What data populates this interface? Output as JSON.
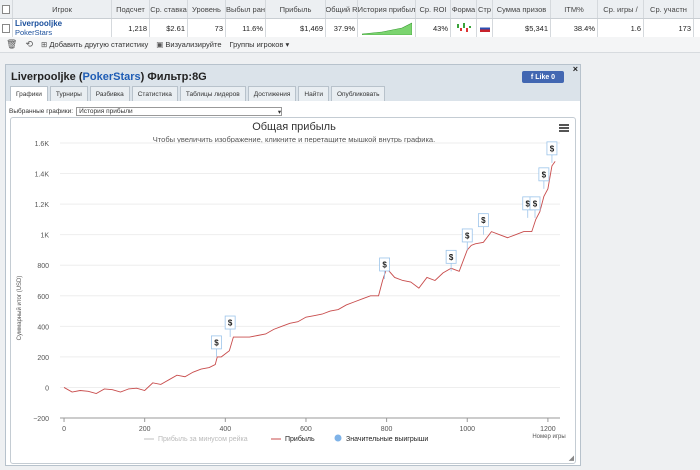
{
  "grid": {
    "headers": [
      "Игрок",
      "Подсчет",
      "Ср. ставка",
      "Уровень",
      "Выбыл ран",
      "Прибыль",
      "Общий R",
      "История прибыл",
      "Ср. ROI",
      "Форма",
      "Стр",
      "Сумма призов",
      "ITM%",
      "Ср. игры /",
      "Ср. участн"
    ],
    "row": {
      "player": "Liverpooljke",
      "site": "PokerStars",
      "count": "1,218",
      "avg_stake": "$2.61",
      "level": "73",
      "early_out": "11.6%",
      "profit": "$1,469",
      "total_r": "37.9%",
      "avg_roi": "43%",
      "prize_sum": "$5,341",
      "itm": "38.4%",
      "avg_games": "1.6",
      "avg_entrants": "173"
    }
  },
  "toolbar": {
    "add_stat": "Добавить другую статистику",
    "visualize": "Визуализируйте",
    "groups": "Группы игроков"
  },
  "panel": {
    "player": "Liverpooljke",
    "site": "PokerStars",
    "filter": "Фильтр:8G",
    "like": "Like 0",
    "tabs": [
      "Графики",
      "Турниры",
      "Разбивка",
      "Статистика",
      "Таблицы лидеров",
      "Достижения",
      "Найти",
      "Опубликовать"
    ],
    "sel_label": "Выбранные графики:",
    "sel_value": "История прибыли"
  },
  "chart_data": {
    "type": "line",
    "title": "Общая прибыль",
    "subtitle": "Чтобы увеличить изображение, кликните и перетащите мышкой внутрь графика.",
    "ylabel": "Суммарный итог (USD)",
    "xlabel": "Номер игры",
    "xlim": [
      -10,
      1230
    ],
    "ylim": [
      -200,
      1600
    ],
    "xticks": [
      0,
      200,
      400,
      600,
      800,
      1000,
      1200
    ],
    "xtick_labels": [
      "0",
      "200",
      "400",
      "600",
      "800",
      "1000",
      "1200"
    ],
    "yticks": [
      -200,
      0,
      200,
      400,
      600,
      800,
      1000,
      1200,
      1400,
      1600
    ],
    "ytick_labels": [
      "−200",
      "0",
      "200",
      "400",
      "600",
      "800",
      "1K",
      "1.2K",
      "1.4K",
      "1.6K"
    ],
    "legend": [
      "Прибыль за минусом рейка",
      "Прибыль",
      "Значительные выигрыши"
    ],
    "colors": {
      "profit": "#c84c4c",
      "rake": "#bfbfbf",
      "bigwin": "#7fb3e8"
    },
    "series": [
      {
        "name": "Прибыль",
        "x": [
          0,
          20,
          40,
          60,
          80,
          100,
          120,
          140,
          160,
          180,
          200,
          220,
          240,
          260,
          280,
          300,
          320,
          340,
          360,
          375,
          380,
          390,
          410,
          420,
          440,
          460,
          480,
          500,
          520,
          540,
          560,
          580,
          600,
          620,
          640,
          660,
          680,
          700,
          720,
          740,
          760,
          780,
          790,
          800,
          820,
          840,
          860,
          880,
          900,
          920,
          940,
          960,
          980,
          1000,
          1010,
          1020,
          1040,
          1060,
          1080,
          1100,
          1120,
          1140,
          1160,
          1170,
          1180,
          1190,
          1200,
          1210,
          1218
        ],
        "y": [
          0,
          -30,
          -20,
          -25,
          -40,
          -10,
          -15,
          -30,
          -10,
          -5,
          -20,
          30,
          20,
          50,
          80,
          70,
          100,
          120,
          130,
          150,
          200,
          200,
          240,
          330,
          330,
          330,
          340,
          350,
          380,
          400,
          420,
          430,
          460,
          470,
          480,
          500,
          510,
          540,
          560,
          580,
          600,
          600,
          700,
          780,
          720,
          700,
          690,
          650,
          720,
          700,
          750,
          780,
          760,
          900,
          930,
          940,
          950,
          1020,
          1000,
          980,
          1000,
          1020,
          1020,
          1100,
          1150,
          1250,
          1300,
          1450,
          1480
        ]
      }
    ],
    "big_wins": [
      {
        "x": 378,
        "y": 200
      },
      {
        "x": 412,
        "y": 330
      },
      {
        "x": 795,
        "y": 710
      },
      {
        "x": 960,
        "y": 760
      },
      {
        "x": 1000,
        "y": 900
      },
      {
        "x": 1040,
        "y": 1000
      },
      {
        "x": 1150,
        "y": 1110
      },
      {
        "x": 1168,
        "y": 1110
      },
      {
        "x": 1190,
        "y": 1300
      },
      {
        "x": 1210,
        "y": 1470
      }
    ]
  }
}
